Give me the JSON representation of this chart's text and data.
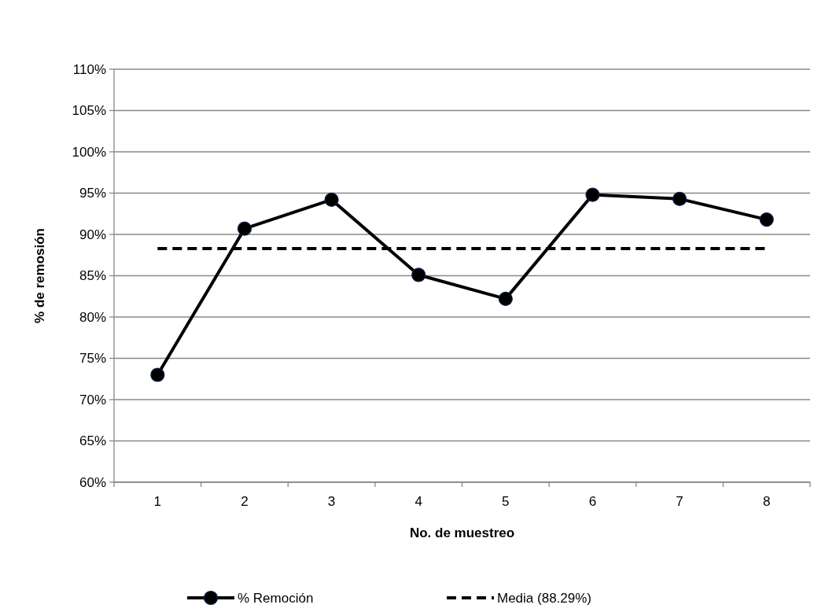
{
  "chart_data": {
    "type": "line",
    "xlabel": "No. de muestreo",
    "ylabel": "% de remosión",
    "categories": [
      "1",
      "2",
      "3",
      "4",
      "5",
      "6",
      "7",
      "8"
    ],
    "series": [
      {
        "name": "% Remoción",
        "color": "#000000",
        "values": [
          73.0,
          90.7,
          94.2,
          85.1,
          82.2,
          94.8,
          94.3,
          91.8
        ],
        "marker": "circle",
        "line_style": "solid"
      },
      {
        "name": "Media (88.29%)",
        "color": "#000000",
        "values": [
          88.29,
          88.29,
          88.29,
          88.29,
          88.29,
          88.29,
          88.29,
          88.29
        ],
        "marker": "none",
        "line_style": "dashed"
      }
    ],
    "ylim": [
      60,
      110
    ],
    "yticks": [
      {
        "value": 60,
        "label": "60%"
      },
      {
        "value": 65,
        "label": "65%"
      },
      {
        "value": 70,
        "label": "70%"
      },
      {
        "value": 75,
        "label": "75%"
      },
      {
        "value": 80,
        "label": "80%"
      },
      {
        "value": 85,
        "label": "85%"
      },
      {
        "value": 90,
        "label": "90%"
      },
      {
        "value": 95,
        "label": "95%"
      },
      {
        "value": 100,
        "label": "100%"
      },
      {
        "value": 105,
        "label": "105%"
      },
      {
        "value": 110,
        "label": "110%"
      }
    ],
    "grid": "y",
    "legend": "bottom"
  }
}
